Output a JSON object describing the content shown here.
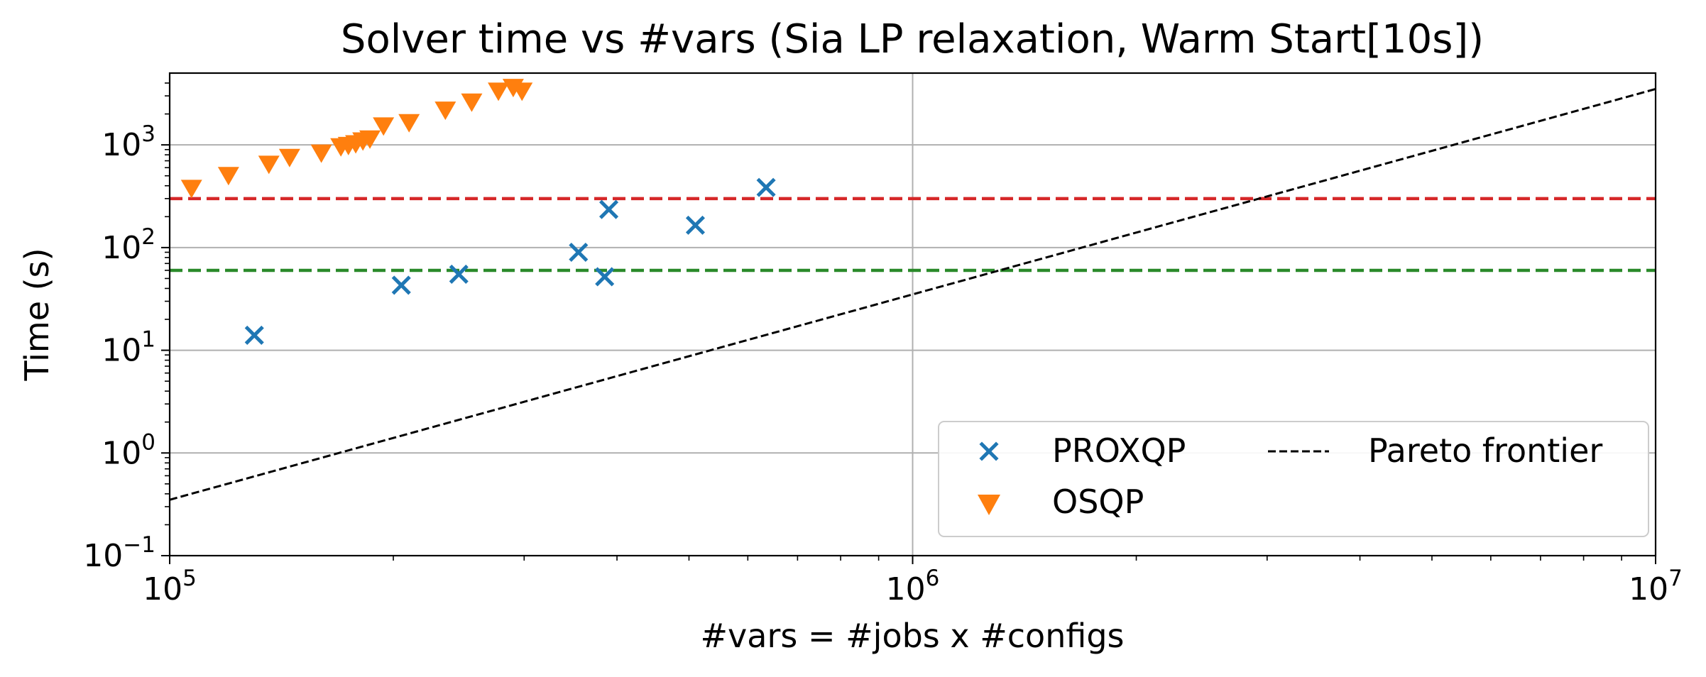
{
  "chart_data": {
    "type": "scatter",
    "title": "Solver time vs #vars (Sia LP relaxation, Warm Start[10s])",
    "xlabel": "#vars = #jobs x #configs",
    "ylabel": "Time (s)",
    "xscale": "log",
    "yscale": "log",
    "xlim": [
      100000,
      10000000
    ],
    "ylim": [
      0.1,
      5000
    ],
    "grid": "major",
    "legend_position": "lower-right",
    "x_ticks": [
      {
        "value": 100000,
        "base": "10",
        "exp": "5"
      },
      {
        "value": 1000000,
        "base": "10",
        "exp": "6"
      },
      {
        "value": 10000000,
        "base": "10",
        "exp": "7"
      }
    ],
    "y_ticks": [
      {
        "value": 0.1,
        "base": "10",
        "exp": "−1"
      },
      {
        "value": 1,
        "base": "10",
        "exp": "0"
      },
      {
        "value": 10,
        "base": "10",
        "exp": "1"
      },
      {
        "value": 100,
        "base": "10",
        "exp": "2"
      },
      {
        "value": 1000,
        "base": "10",
        "exp": "3"
      }
    ],
    "series": [
      {
        "name": "PROXQP",
        "marker": "x",
        "color": "#1f77b4",
        "points": [
          {
            "x": 130000,
            "y": 14
          },
          {
            "x": 205000,
            "y": 43
          },
          {
            "x": 245000,
            "y": 55
          },
          {
            "x": 355000,
            "y": 90
          },
          {
            "x": 385000,
            "y": 52
          },
          {
            "x": 390000,
            "y": 235
          },
          {
            "x": 510000,
            "y": 165
          },
          {
            "x": 635000,
            "y": 385
          }
        ]
      },
      {
        "name": "OSQP",
        "marker": "triangle-down",
        "color": "#ff7f0e",
        "points": [
          {
            "x": 107000,
            "y": 390
          },
          {
            "x": 120000,
            "y": 520
          },
          {
            "x": 136000,
            "y": 670
          },
          {
            "x": 145000,
            "y": 780
          },
          {
            "x": 160000,
            "y": 860
          },
          {
            "x": 170000,
            "y": 990
          },
          {
            "x": 174000,
            "y": 1020
          },
          {
            "x": 178000,
            "y": 1060
          },
          {
            "x": 182000,
            "y": 1130
          },
          {
            "x": 186000,
            "y": 1180
          },
          {
            "x": 194000,
            "y": 1580
          },
          {
            "x": 210000,
            "y": 1700
          },
          {
            "x": 235000,
            "y": 2250
          },
          {
            "x": 255000,
            "y": 2700
          },
          {
            "x": 277000,
            "y": 3450
          },
          {
            "x": 290000,
            "y": 3750
          },
          {
            "x": 298000,
            "y": 3450
          }
        ]
      }
    ],
    "reference_lines": [
      {
        "orientation": "horizontal",
        "y": 300,
        "color": "#d62728",
        "style": "dashed"
      },
      {
        "orientation": "horizontal",
        "y": 60,
        "color": "#2a8a2a",
        "style": "dashed"
      }
    ],
    "pareto_line": {
      "name": "Pareto frontier",
      "color": "#000000",
      "style": "dashed",
      "points": [
        {
          "x": 100000,
          "y": 0.35
        },
        {
          "x": 10000000,
          "y": 3500
        }
      ]
    }
  }
}
